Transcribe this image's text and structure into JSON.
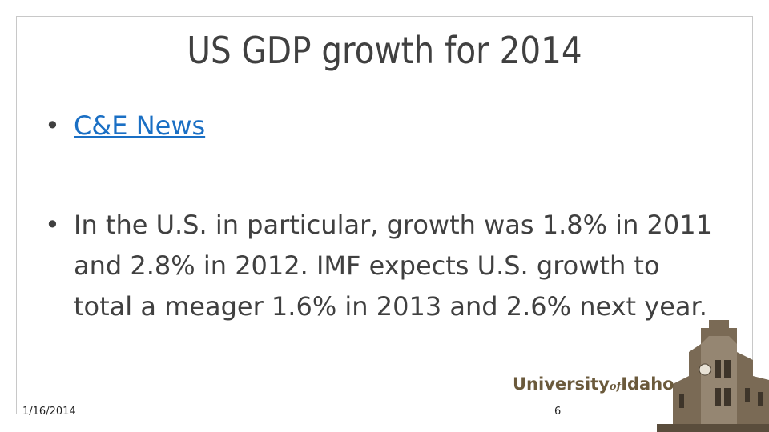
{
  "slide": {
    "title": "US GDP growth for 2014",
    "bullets": [
      {
        "text": "C&E News",
        "link": true
      },
      {
        "text": "In the U.S. in particular, growth was 1.8% in 2011 and 2.8% in 2012. IMF expects U.S. growth to total a meager 1.6% in 2013 and 2.6% next year.",
        "link": false
      }
    ],
    "footer": {
      "date": "1/16/2014",
      "page_number": "6"
    },
    "logo": {
      "name_start": "University",
      "name_middle": "of",
      "name_end": "Idaho"
    }
  }
}
